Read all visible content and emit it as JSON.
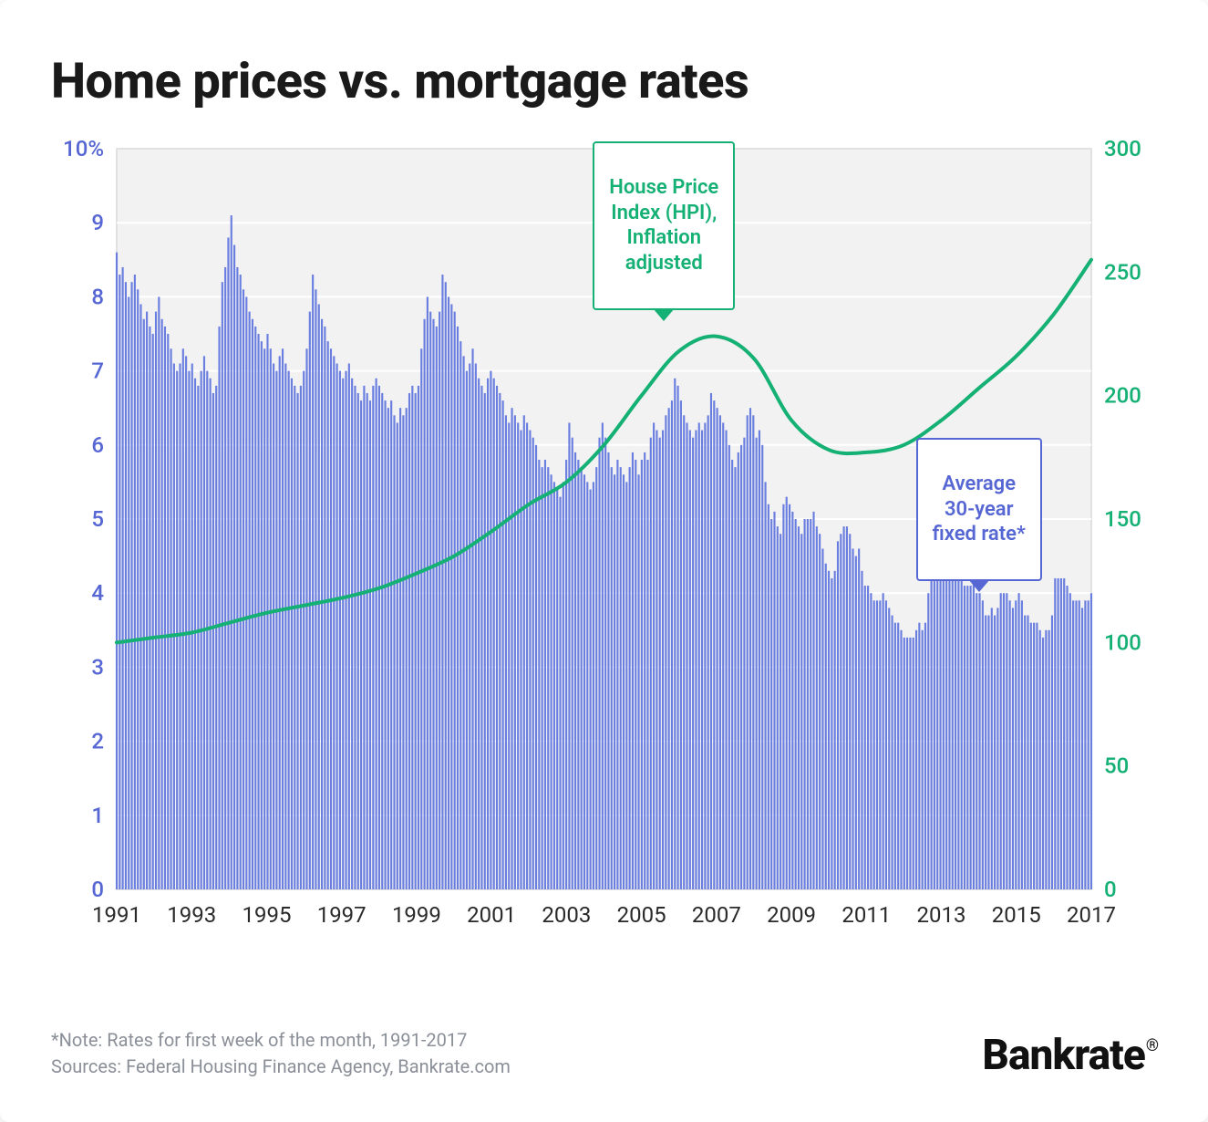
{
  "title": "Home prices vs. mortgage rates",
  "note_line1": "*Note: Rates for first week of the month, 1991-2017",
  "note_line2": "Sources: Federal Housing Finance Agency, Bankrate.com",
  "brand": "Bankrate",
  "chart": {
    "type": "combo-bar-line",
    "background_color": "#f2f2f2",
    "plot_border_color": "#d9d9d9",
    "grid_color": "#ffffff",
    "bar_color": "#6a7ee0",
    "bar_gap_ratio": 0.35,
    "line_color": "#14b074",
    "line_width": 4,
    "axis_font_size": 24,
    "left_axis": {
      "label_color": "#5667d4",
      "min": 0,
      "max": 10,
      "step": 1,
      "suffix_on_top": "%"
    },
    "right_axis": {
      "label_color": "#14b074",
      "min": 0,
      "max": 300,
      "step": 50
    },
    "x_axis": {
      "label_color": "#2a2a2a",
      "start_year": 1991,
      "end_year": 2017,
      "tick_step_years": 2
    },
    "callouts": {
      "hpi": {
        "text": "House Price\nIndex (HPI),\nInflation\nadjusted",
        "color": "#14b074",
        "center_year": 2005.6,
        "box_top_rate": 10.1,
        "points_down": true
      },
      "rate": {
        "text": "Average\n30-year\nfixed rate*",
        "color": "#5667d4",
        "center_year": 2014.0,
        "box_top_rate": 6.1,
        "points_down": true
      }
    },
    "rate_monthly_1991_2017": [
      8.6,
      8.3,
      8.4,
      8.2,
      8,
      8.2,
      8.3,
      8.1,
      7.9,
      7.7,
      7.8,
      7.6,
      7.5,
      7.8,
      8,
      7.7,
      7.6,
      7.5,
      7.3,
      7.1,
      7,
      7.1,
      7.3,
      7.2,
      7,
      7.1,
      6.9,
      6.8,
      7,
      7.2,
      7,
      6.9,
      6.7,
      6.8,
      7.6,
      8.2,
      8.4,
      8.8,
      9.1,
      8.7,
      8.4,
      8.3,
      8.1,
      8,
      7.8,
      7.7,
      7.6,
      7.5,
      7.4,
      7.3,
      7.5,
      7.3,
      7.1,
      7,
      7.2,
      7.3,
      7.1,
      7,
      6.9,
      6.8,
      6.7,
      6.8,
      7,
      7.3,
      7.8,
      8.3,
      8.1,
      7.9,
      7.7,
      7.6,
      7.4,
      7.3,
      7.2,
      7.1,
      7,
      6.9,
      7,
      7.1,
      6.9,
      6.8,
      6.7,
      6.6,
      6.8,
      6.7,
      6.6,
      6.8,
      6.9,
      6.8,
      6.7,
      6.6,
      6.5,
      6.6,
      6.4,
      6.3,
      6.5,
      6.4,
      6.5,
      6.7,
      6.8,
      6.7,
      6.8,
      7.3,
      7.7,
      8,
      7.8,
      7.7,
      7.6,
      7.8,
      8.3,
      8.2,
      8.0,
      7.9,
      7.8,
      7.6,
      7.4,
      7.2,
      7.0,
      7.1,
      7.3,
      7.1,
      6.9,
      6.8,
      6.7,
      6.9,
      7.0,
      6.9,
      6.8,
      6.7,
      6.6,
      6.4,
      6.3,
      6.5,
      6.4,
      6.3,
      6.2,
      6.4,
      6.3,
      6.2,
      6.1,
      6.0,
      5.8,
      5.7,
      5.8,
      5.7,
      5.6,
      5.5,
      5.4,
      5.3,
      5.5,
      5.8,
      6.3,
      6.1,
      5.9,
      5.8,
      5.7,
      5.6,
      5.5,
      5.4,
      5.5,
      5.7,
      6.1,
      6.3,
      6.1,
      5.9,
      5.7,
      5.6,
      5.8,
      5.7,
      5.6,
      5.5,
      5.7,
      5.9,
      5.8,
      5.6,
      5.8,
      5.9,
      5.8,
      6.1,
      6.3,
      6.2,
      6.1,
      6.2,
      6.4,
      6.5,
      6.6,
      6.9,
      6.8,
      6.6,
      6.4,
      6.3,
      6.2,
      6.1,
      6.2,
      6.3,
      6.2,
      6.3,
      6.4,
      6.7,
      6.6,
      6.5,
      6.4,
      6.3,
      6.2,
      6.0,
      5.8,
      5.7,
      5.9,
      6.0,
      6.1,
      6.4,
      6.5,
      6.4,
      6.1,
      6.2,
      6.0,
      5.5,
      5.2,
      5.0,
      5.1,
      4.9,
      4.8,
      5.2,
      5.3,
      5.2,
      5.1,
      5.0,
      4.9,
      4.8,
      5.0,
      5.0,
      5.0,
      5.1,
      4.9,
      4.8,
      4.6,
      4.4,
      4.3,
      4.2,
      4.3,
      4.7,
      4.8,
      4.9,
      4.9,
      4.8,
      4.6,
      4.5,
      4.6,
      4.3,
      4.1,
      4.1,
      4.0,
      3.9,
      3.9,
      3.9,
      4.0,
      3.9,
      3.8,
      3.7,
      3.6,
      3.6,
      3.5,
      3.4,
      3.4,
      3.4,
      3.4,
      3.5,
      3.6,
      3.5,
      3.6,
      4.0,
      4.4,
      4.5,
      4.6,
      4.3,
      4.3,
      4.5,
      4.4,
      4.3,
      4.3,
      4.3,
      4.2,
      4.1,
      4.1,
      4.1,
      4.2,
      4.0,
      4.0,
      3.9,
      3.7,
      3.7,
      3.8,
      3.7,
      3.8,
      4.0,
      4.0,
      4.0,
      3.9,
      3.8,
      3.9,
      4.0,
      3.9,
      3.7,
      3.7,
      3.6,
      3.6,
      3.6,
      3.5,
      3.4,
      3.5,
      3.5,
      3.7,
      4.2,
      4.2,
      4.2,
      4.2,
      4.1,
      4.0,
      3.9,
      3.9,
      3.9,
      3.8,
      3.9,
      3.9,
      4.0
    ],
    "hpi_yearly_1991_2017": [
      100,
      102,
      104,
      108,
      112,
      115,
      118,
      122,
      128,
      135,
      145,
      156,
      165,
      180,
      200,
      218,
      224,
      215,
      190,
      178,
      177,
      180,
      190,
      203,
      216,
      233,
      255
    ]
  }
}
